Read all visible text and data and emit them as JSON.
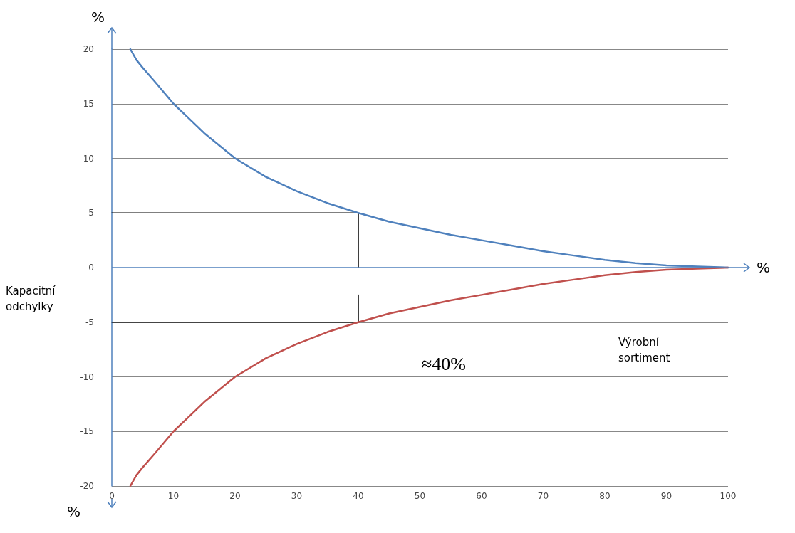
{
  "chart_data": {
    "type": "line",
    "xlabel": "%",
    "ylabel": "%",
    "xlim": [
      0,
      100
    ],
    "xticks": [
      0,
      10,
      20,
      30,
      40,
      50,
      60,
      70,
      80,
      90,
      100
    ],
    "ylim": [
      -20,
      20
    ],
    "yticks": [
      -20,
      -15,
      -10,
      -5,
      0,
      5,
      10,
      15,
      20
    ],
    "grid": "y",
    "marker": "none",
    "line_style": "solid",
    "ref_lines": [
      {
        "axis": "y",
        "value": 0,
        "color": "#4f81bd"
      }
    ],
    "series": [
      {
        "color": "#4f81bd",
        "x": [
          3,
          4,
          5,
          7,
          10,
          15,
          20,
          25,
          30,
          35,
          40,
          45,
          50,
          55,
          60,
          65,
          70,
          75,
          80,
          85,
          90,
          95,
          100
        ],
        "values": [
          20,
          19,
          18.3,
          17,
          15,
          12.3,
          10,
          8.3,
          7,
          5.9,
          5,
          4.2,
          3.6,
          3,
          2.5,
          2,
          1.5,
          1.1,
          0.7,
          0.4,
          0.2,
          0.1,
          0
        ]
      },
      {
        "color": "#c0504d",
        "x": [
          3,
          4,
          5,
          7,
          10,
          15,
          20,
          25,
          30,
          35,
          40,
          45,
          50,
          55,
          60,
          65,
          70,
          75,
          80,
          85,
          90,
          95,
          100
        ],
        "values": [
          -20,
          -19,
          -18.3,
          -17,
          -15,
          -12.3,
          -10,
          -8.3,
          -7,
          -5.9,
          -5,
          -4.2,
          -3.6,
          -3,
          -2.5,
          -2,
          -1.5,
          -1.1,
          -0.7,
          -0.4,
          -0.2,
          -0.1,
          0
        ]
      },
      {
        "color": "#000000",
        "x": [
          0,
          40,
          40
        ],
        "values": [
          5,
          5,
          0
        ]
      },
      {
        "color": "#000000",
        "x": [
          0,
          40,
          40
        ],
        "values": [
          -5,
          -5,
          -2.5
        ]
      }
    ],
    "annotations": [
      "Kapacitní odchylky",
      "Výrobní sortiment",
      "≈40%",
      "%"
    ]
  }
}
